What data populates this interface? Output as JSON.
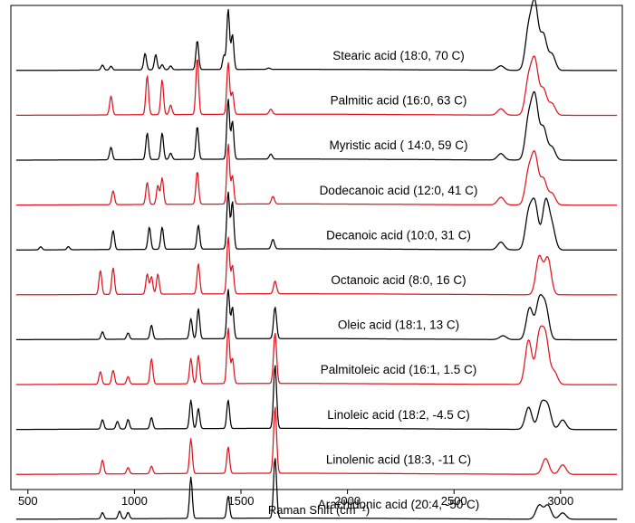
{
  "chart_data": {
    "type": "line",
    "xlabel": "Raman Shift (cm⁻¹)",
    "xlim": [
      420,
      3290
    ],
    "x_ticks": [
      {
        "value": 500,
        "label": "500"
      },
      {
        "value": 1000,
        "label": "1000"
      },
      {
        "value": 1500,
        "label": "1500"
      },
      {
        "value": 2000,
        "label": "2000"
      },
      {
        "value": 2500,
        "label": "2500"
      },
      {
        "value": 3000,
        "label": "3000"
      }
    ],
    "y_ticks": false,
    "grid": false,
    "legend": "inline labels above each trace",
    "series": [
      {
        "name": "Stearic acid (18:0, 70   C)",
        "color": "#000000",
        "peaks": [
          [
            850,
            0.08
          ],
          [
            890,
            0.06
          ],
          [
            1050,
            0.26
          ],
          [
            1100,
            0.24
          ],
          [
            1130,
            0.08
          ],
          [
            1170,
            0.06
          ],
          [
            1295,
            0.46
          ],
          [
            1420,
            0.22
          ],
          [
            1440,
            0.95
          ],
          [
            1460,
            0.55
          ],
          [
            1630,
            0.02
          ],
          [
            2720,
            0.07
          ],
          [
            2850,
            0.62
          ],
          [
            2880,
            1.0
          ],
          [
            2920,
            0.55
          ],
          [
            2960,
            0.25
          ]
        ]
      },
      {
        "name": "Palmitic acid (16:0, 63   C)",
        "color": "#e0141e",
        "peaks": [
          [
            890,
            0.3
          ],
          [
            1060,
            0.62
          ],
          [
            1130,
            0.55
          ],
          [
            1170,
            0.15
          ],
          [
            1295,
            0.9
          ],
          [
            1440,
            0.82
          ],
          [
            1460,
            0.35
          ],
          [
            1640,
            0.08
          ],
          [
            2720,
            0.1
          ],
          [
            2850,
            0.55
          ],
          [
            2880,
            0.82
          ],
          [
            2920,
            0.4
          ],
          [
            2960,
            0.18
          ]
        ]
      },
      {
        "name": "Myristic acid ( 14:0, 59   C)",
        "color": "#000000",
        "peaks": [
          [
            890,
            0.2
          ],
          [
            1060,
            0.42
          ],
          [
            1130,
            0.42
          ],
          [
            1170,
            0.1
          ],
          [
            1295,
            0.52
          ],
          [
            1440,
            0.95
          ],
          [
            1460,
            0.6
          ],
          [
            1640,
            0.08
          ],
          [
            2720,
            0.1
          ],
          [
            2850,
            0.62
          ],
          [
            2880,
            0.95
          ],
          [
            2920,
            0.5
          ],
          [
            2960,
            0.2
          ]
        ]
      },
      {
        "name": "Dodecanoic  acid (12:0, 41   C)",
        "color": "#e0141e",
        "peaks": [
          [
            900,
            0.22
          ],
          [
            1060,
            0.35
          ],
          [
            1110,
            0.3
          ],
          [
            1130,
            0.42
          ],
          [
            1295,
            0.52
          ],
          [
            1440,
            0.95
          ],
          [
            1460,
            0.45
          ],
          [
            1650,
            0.12
          ],
          [
            2720,
            0.12
          ],
          [
            2850,
            0.5
          ],
          [
            2880,
            0.75
          ],
          [
            2920,
            0.4
          ],
          [
            2960,
            0.18
          ]
        ]
      },
      {
        "name": "Decanoic acid (10:0,  31   C)",
        "color": "#000000",
        "peaks": [
          [
            560,
            0.05
          ],
          [
            690,
            0.05
          ],
          [
            900,
            0.3
          ],
          [
            1070,
            0.35
          ],
          [
            1130,
            0.35
          ],
          [
            1300,
            0.38
          ],
          [
            1440,
            0.9
          ],
          [
            1460,
            0.75
          ],
          [
            1650,
            0.15
          ],
          [
            2720,
            0.12
          ],
          [
            2850,
            0.55
          ],
          [
            2880,
            0.7
          ],
          [
            2930,
            0.75
          ],
          [
            2960,
            0.35
          ]
        ]
      },
      {
        "name": "Octanoic acid (8:0, 16   C)",
        "color": "#e0141e",
        "peaks": [
          [
            840,
            0.38
          ],
          [
            900,
            0.42
          ],
          [
            1060,
            0.32
          ],
          [
            1080,
            0.28
          ],
          [
            1110,
            0.32
          ],
          [
            1300,
            0.48
          ],
          [
            1440,
            0.9
          ],
          [
            1460,
            0.45
          ],
          [
            1660,
            0.2
          ],
          [
            2900,
            0.6
          ],
          [
            2940,
            0.58
          ]
        ]
      },
      {
        "name": "Oleic acid (18:1, 13   C)",
        "color": "#000000",
        "peaks": [
          [
            850,
            0.12
          ],
          [
            970,
            0.1
          ],
          [
            1080,
            0.22
          ],
          [
            1265,
            0.32
          ],
          [
            1300,
            0.48
          ],
          [
            1440,
            0.78
          ],
          [
            1460,
            0.5
          ],
          [
            1660,
            0.5
          ],
          [
            2730,
            0.06
          ],
          [
            2855,
            0.5
          ],
          [
            2900,
            0.6
          ],
          [
            2930,
            0.5
          ]
        ]
      },
      {
        "name": "Palmitoleic acid (16:1, 1.5   C)",
        "color": "#e0141e",
        "peaks": [
          [
            840,
            0.2
          ],
          [
            900,
            0.22
          ],
          [
            970,
            0.12
          ],
          [
            1080,
            0.4
          ],
          [
            1265,
            0.4
          ],
          [
            1300,
            0.45
          ],
          [
            1440,
            0.88
          ],
          [
            1460,
            0.4
          ],
          [
            1660,
            0.8
          ],
          [
            2850,
            0.7
          ],
          [
            2900,
            0.75
          ],
          [
            2930,
            0.72
          ],
          [
            2970,
            0.2
          ]
        ]
      },
      {
        "name": "Linoleic acid (18:2,  -4.5   C)",
        "color": "#000000",
        "peaks": [
          [
            850,
            0.15
          ],
          [
            920,
            0.12
          ],
          [
            970,
            0.15
          ],
          [
            1080,
            0.18
          ],
          [
            1265,
            0.45
          ],
          [
            1300,
            0.32
          ],
          [
            1440,
            0.45
          ],
          [
            1660,
            1.0
          ],
          [
            2850,
            0.35
          ],
          [
            2910,
            0.38
          ],
          [
            2940,
            0.35
          ],
          [
            3010,
            0.15
          ]
        ]
      },
      {
        "name": "Linolenic acid (18:3,  -11   C)",
        "color": "#e0141e",
        "peaks": [
          [
            850,
            0.22
          ],
          [
            970,
            0.1
          ],
          [
            1080,
            0.12
          ],
          [
            1265,
            0.55
          ],
          [
            1440,
            0.42
          ],
          [
            1660,
            1.05
          ],
          [
            2930,
            0.25
          ],
          [
            3010,
            0.15
          ]
        ]
      },
      {
        "name": "Arachidonic acid (20:4,  -50   C)",
        "color": "#000000",
        "peaks": [
          [
            850,
            0.1
          ],
          [
            930,
            0.12
          ],
          [
            970,
            0.1
          ],
          [
            1265,
            0.65
          ],
          [
            1440,
            0.35
          ],
          [
            1660,
            0.95
          ],
          [
            2900,
            0.22
          ],
          [
            2940,
            0.22
          ],
          [
            3010,
            0.1
          ]
        ]
      }
    ]
  }
}
